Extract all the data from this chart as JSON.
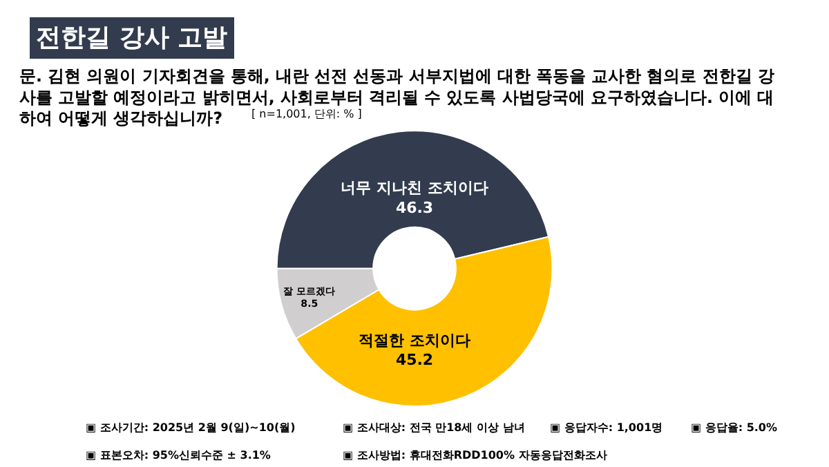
{
  "chart_data": {
    "type": "donut",
    "title": "전한길 강사 고발",
    "subtitle": "문. 김현 의원이 기자회견을 통해, 내란 선전 선동과 서부지법에 대한 폭동을 교사한 혐의로 전한길 강\n사를 고발할 예정이라고 밝히면서, 사회로부터 격리될 수 있도록 사법당국에 요구하였습니다. 이에 대\n하여 어떻게 생각하십니까?",
    "categories": [
      "너무 지나친 조치이다",
      "적절한 조치이다",
      "잘 모르겠다"
    ],
    "values": [
      46.3,
      45.2,
      8.5
    ],
    "colors": [
      "#323c4e",
      "#ffc000",
      "#d0cece"
    ],
    "data_labels": true,
    "legend": false,
    "annotations": [
      "[ n=1,001, 단위: % ]",
      "▣ 조사기간: 2025년 2월 9(일)~10(월)",
      "▣ 조사대상: 전국 만18세 이상 남녀",
      "▣ 응답자수: 1,001명",
      "▣ 응답율: 5.0%",
      "▣ 표본오차: 95%신뢰수준 ± 3.1%",
      "▣ 조사방법: 휴대전화RDD100% 자동응답전화조사"
    ]
  }
}
